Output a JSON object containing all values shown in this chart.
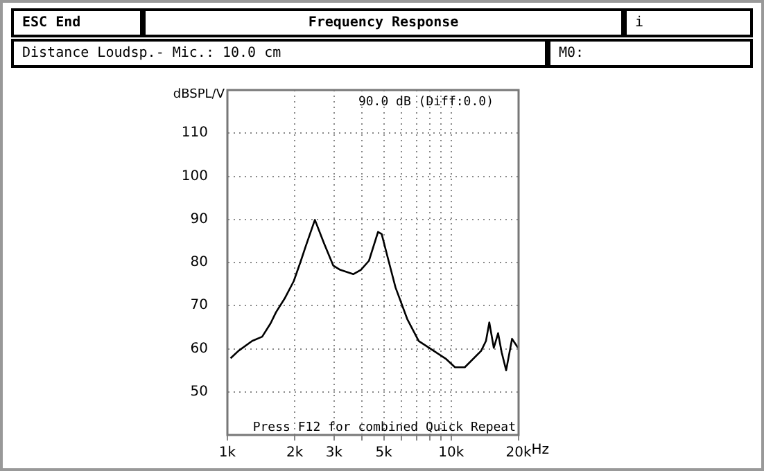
{
  "chart_data": {
    "type": "line",
    "title": "Frequency Response",
    "subtitle": "Distance Loudsp.- Mic.: 10.0 cm",
    "ylabel": "dBSPL/V",
    "annotations": [
      "ESC End",
      "i",
      "M0:",
      "90.0 dB (Diff:0.0)",
      "Press F12 for combined Quick Repeat"
    ],
    "x": [
      1033,
      1120,
      1290,
      1430,
      1560,
      1650,
      1800,
      1980,
      2130,
      2230,
      2460,
      2700,
      2970,
      3190,
      3650,
      3950,
      4290,
      4710,
      4890,
      5250,
      5640,
      6360,
      7160,
      8250,
      9500,
      10400,
      11500,
      13600,
      14300,
      14800,
      15500,
      16200,
      16800,
      17600,
      18700,
      19900
    ],
    "values": [
      57.8,
      59.5,
      61.8,
      62.8,
      65.9,
      68.5,
      71.6,
      75.7,
      80.4,
      83.5,
      89.9,
      84.5,
      79.3,
      78.3,
      77.3,
      78.3,
      80.4,
      87.1,
      86.6,
      80.4,
      74.2,
      66.9,
      61.8,
      59.7,
      57.6,
      55.7,
      55.7,
      59.5,
      61.8,
      66.1,
      60.2,
      63.6,
      59.2,
      55.0,
      62.3,
      60.2
    ],
    "color": "#000000",
    "log": "x",
    "xlim": [
      1000,
      20000
    ],
    "xticks": [
      {
        "value": 1000,
        "label": "1k"
      },
      {
        "value": 2000,
        "label": "2k"
      },
      {
        "value": 3000,
        "label": "3k"
      },
      {
        "value": 4000,
        "label": null
      },
      {
        "value": 5000,
        "label": "5k"
      },
      {
        "value": 6000,
        "label": null
      },
      {
        "value": 7000,
        "label": null
      },
      {
        "value": 8000,
        "label": null
      },
      {
        "value": 9000,
        "label": null
      },
      {
        "value": 10000,
        "label": "10k"
      },
      {
        "value": 20000,
        "label": "20k"
      }
    ],
    "xlabel": "Hz",
    "ylim": [
      40,
      120
    ],
    "yticks": [
      {
        "value": 40,
        "label": null
      },
      50,
      60,
      70,
      80,
      90,
      100,
      110,
      {
        "value": 120,
        "label": null
      }
    ],
    "grid": true,
    "marker": "none",
    "line_style": "solid"
  }
}
